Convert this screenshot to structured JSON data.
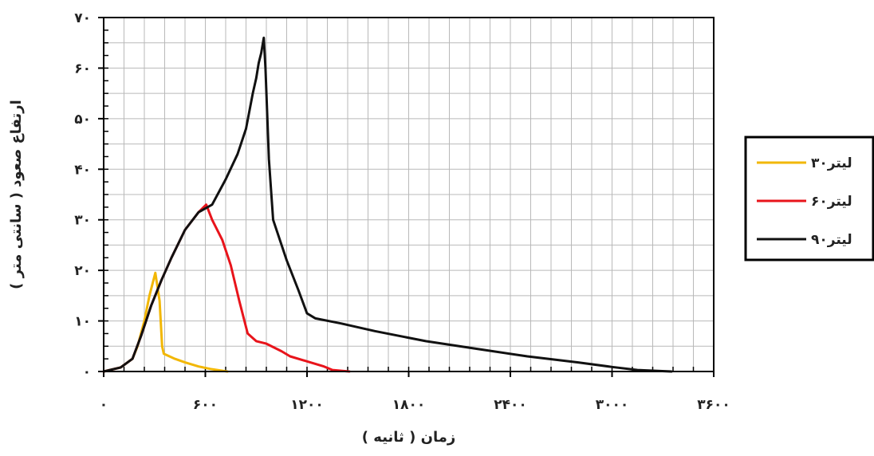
{
  "chart_data": {
    "type": "line",
    "xlabel": "زمان ( ثانیه )",
    "ylabel": "ارتفاع صعود ( سانتی متر )",
    "xlim": [
      0,
      3600
    ],
    "ylim": [
      0,
      70
    ],
    "x_ticks": [
      0,
      600,
      1200,
      1800,
      2400,
      3000,
      3600
    ],
    "x_tick_labels": [
      "۰",
      "۶۰۰",
      "۱۲۰۰",
      "۱۸۰۰",
      "۲۴۰۰",
      "۳۰۰۰",
      "۳۶۰۰"
    ],
    "y_ticks": [
      0,
      10,
      20,
      30,
      40,
      50,
      60,
      70
    ],
    "y_tick_labels": [
      "۰",
      "۱۰",
      "۲۰",
      "۳۰",
      "۴۰",
      "۵۰",
      "۶۰",
      "۷۰"
    ],
    "grid": true,
    "legend_position": "right",
    "series": [
      {
        "name": "۳۰لیتر",
        "color": "#f2b705",
        "points": [
          [
            0,
            0
          ],
          [
            100,
            0.8
          ],
          [
            170,
            2.5
          ],
          [
            200,
            5
          ],
          [
            240,
            10
          ],
          [
            270,
            15
          ],
          [
            305,
            19.5
          ],
          [
            330,
            14
          ],
          [
            345,
            5
          ],
          [
            355,
            3.5
          ],
          [
            420,
            2.5
          ],
          [
            480,
            1.8
          ],
          [
            560,
            1
          ],
          [
            630,
            0.5
          ],
          [
            730,
            0
          ]
        ]
      },
      {
        "name": "۶۰لیتر",
        "color": "#e8141b",
        "points": [
          [
            0,
            0
          ],
          [
            100,
            0.8
          ],
          [
            170,
            2.5
          ],
          [
            220,
            7
          ],
          [
            280,
            13
          ],
          [
            340,
            18
          ],
          [
            400,
            22.5
          ],
          [
            480,
            28
          ],
          [
            560,
            31.5
          ],
          [
            605,
            33
          ],
          [
            640,
            30
          ],
          [
            700,
            26
          ],
          [
            750,
            21
          ],
          [
            800,
            14
          ],
          [
            850,
            7.5
          ],
          [
            900,
            6
          ],
          [
            960,
            5.5
          ],
          [
            1050,
            4
          ],
          [
            1100,
            3
          ],
          [
            1200,
            2
          ],
          [
            1300,
            1
          ],
          [
            1350,
            0.3
          ],
          [
            1450,
            0
          ]
        ]
      },
      {
        "name": "۹۰لیتر",
        "color": "#111111",
        "points": [
          [
            0,
            0
          ],
          [
            100,
            0.8
          ],
          [
            170,
            2.5
          ],
          [
            220,
            7
          ],
          [
            280,
            13
          ],
          [
            340,
            18
          ],
          [
            400,
            22.5
          ],
          [
            480,
            28
          ],
          [
            560,
            31.5
          ],
          [
            640,
            33
          ],
          [
            720,
            38
          ],
          [
            790,
            43
          ],
          [
            840,
            48
          ],
          [
            880,
            55
          ],
          [
            900,
            58
          ],
          [
            915,
            61
          ],
          [
            930,
            63
          ],
          [
            945,
            66
          ],
          [
            955,
            60
          ],
          [
            975,
            42
          ],
          [
            1000,
            30
          ],
          [
            1080,
            22
          ],
          [
            1150,
            16
          ],
          [
            1200,
            11.5
          ],
          [
            1250,
            10.5
          ],
          [
            1400,
            9.5
          ],
          [
            1600,
            8
          ],
          [
            1900,
            6
          ],
          [
            2200,
            4.5
          ],
          [
            2500,
            3
          ],
          [
            2800,
            1.8
          ],
          [
            3000,
            0.9
          ],
          [
            3150,
            0.3
          ],
          [
            3350,
            0
          ]
        ]
      }
    ]
  }
}
